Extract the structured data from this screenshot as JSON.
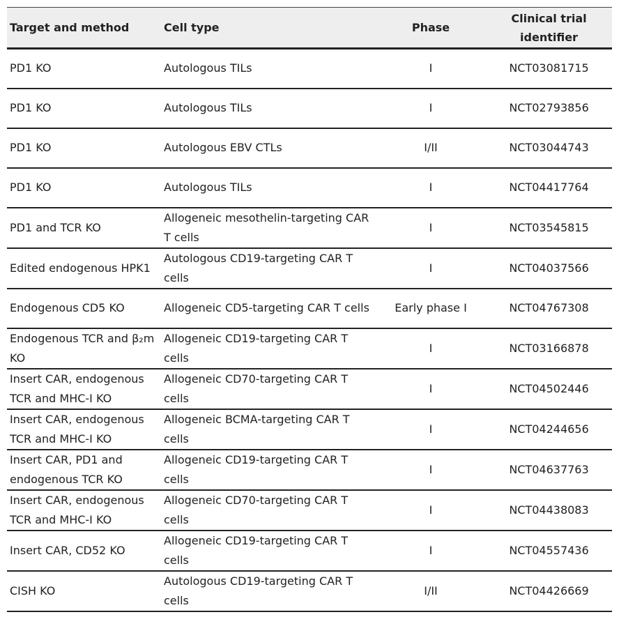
{
  "headers": [
    "Target and method",
    "Cell type",
    "Phase",
    "Clinical trial identifier"
  ],
  "rows": [
    [
      "PD1 KO",
      "Autologous TILs",
      "I",
      "NCT03081715"
    ],
    [
      "PD1 KO",
      "Autologous TILs",
      "I",
      "NCT02793856"
    ],
    [
      "PD1 KO",
      "Autologous EBV CTLs",
      "I/II",
      "NCT03044743"
    ],
    [
      "PD1 KO",
      "Autologous TILs",
      "I",
      "NCT04417764"
    ],
    [
      "PD1 and TCR KO",
      "Allogeneic mesothelin-targeting CAR T cells",
      "I",
      "NCT03545815"
    ],
    [
      "Edited endogenous HPK1",
      "Autologous CD19-targeting CAR T cells",
      "I",
      "NCT04037566"
    ],
    [
      "Endogenous CD5 KO",
      "Allogeneic CD5-targeting CAR T cells",
      "Early phase I",
      "NCT04767308"
    ],
    [
      "Endogenous TCR and β₂m KO",
      "Allogeneic CD19-targeting CAR T cells",
      "I",
      "NCT03166878"
    ],
    [
      "Insert CAR, endogenous TCR and MHC-I KO",
      "Allogeneic CD70-targeting CAR T cells",
      "I",
      "NCT04502446"
    ],
    [
      "Insert CAR, endogenous TCR and MHC-I KO",
      "Allogeneic BCMA-targeting CAR T cells",
      "I",
      "NCT04244656"
    ],
    [
      "Insert CAR, PD1 and endogenous TCR KO",
      "Allogeneic CD19-targeting CAR T cells",
      "I",
      "NCT04637763"
    ],
    [
      "Insert CAR, endogenous TCR and MHC-I KO",
      "Allogeneic CD70-targeting CAR T cells",
      "I",
      "NCT04438083"
    ],
    [
      "Insert CAR, CD52 KO",
      "Allogeneic CD19-targeting CAR T cells",
      "I",
      "NCT04557436"
    ],
    [
      "CISH KO",
      "Autologous CD19-targeting CAR T cells",
      "I/II",
      "NCT04426669"
    ]
  ]
}
